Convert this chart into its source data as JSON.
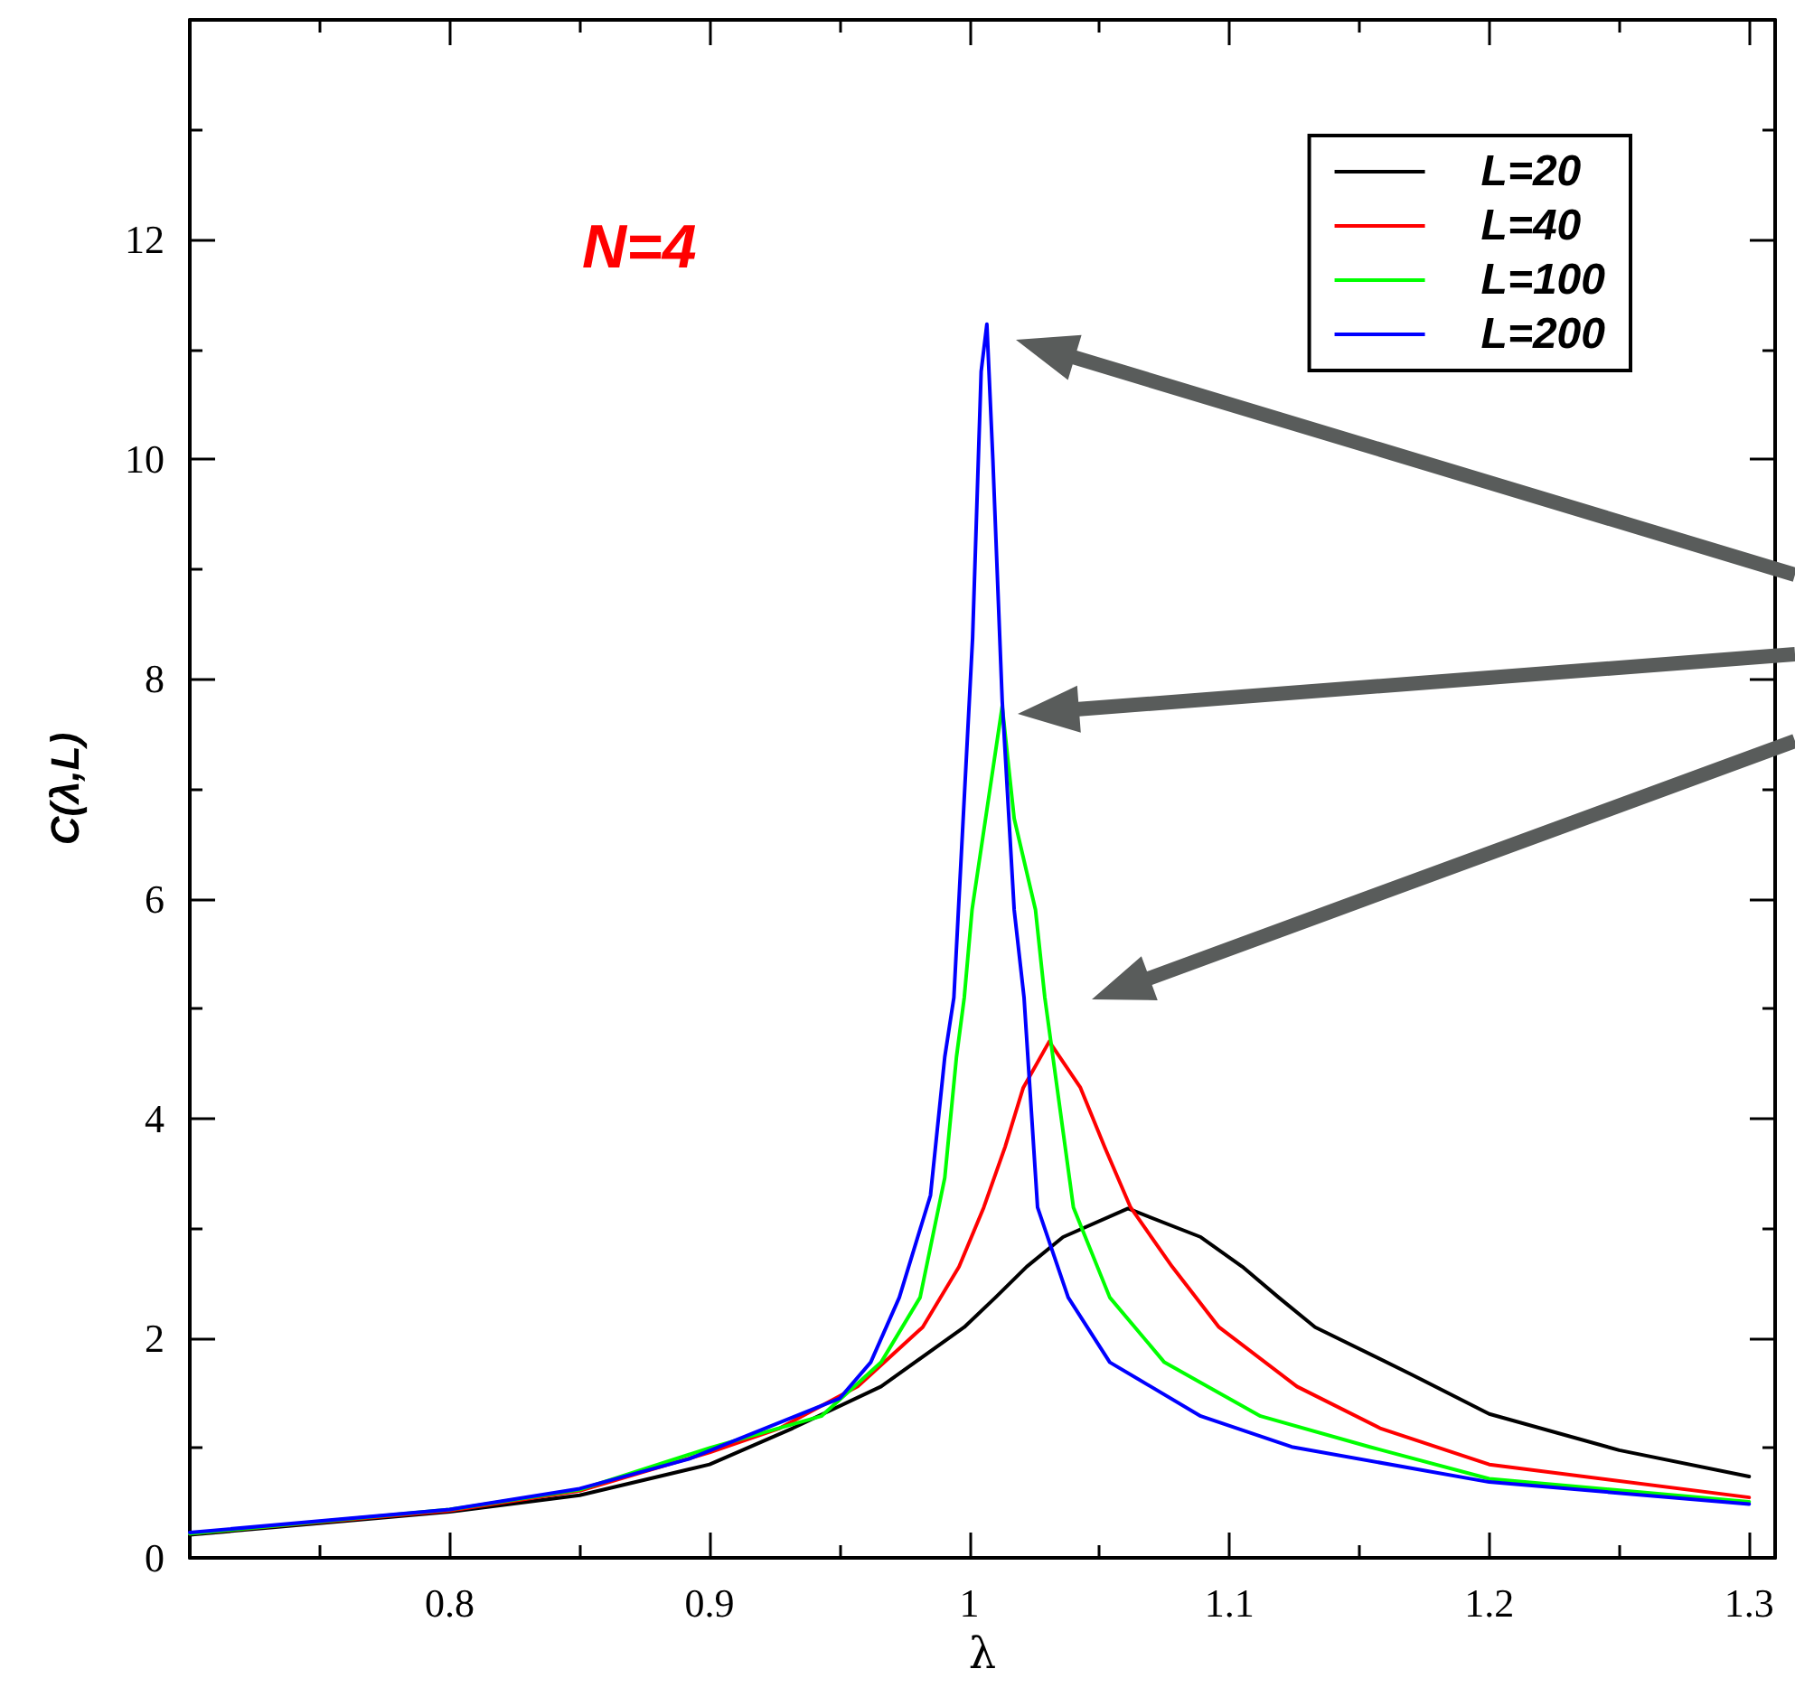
{
  "chart_data": {
    "type": "line",
    "xlabel": "λ",
    "ylabel": "C(λ,L)",
    "annotations": [
      "N=4"
    ],
    "xlim": [
      0.7,
      1.31
    ],
    "ylim": [
      0,
      14
    ],
    "xticks": [
      0.8,
      0.9,
      1,
      1.1,
      1.2,
      1.3
    ],
    "yticks": [
      0,
      2,
      4,
      6,
      8,
      10,
      12
    ],
    "grid": false,
    "legend": "top right",
    "marker": "none",
    "line_style": "solid",
    "series": [
      {
        "name": "L=20",
        "color": "#000000",
        "x": [
          0.7,
          0.8,
          0.85,
          0.9,
          0.932,
          0.966,
          0.998,
          1.01,
          1.022,
          1.036,
          1.061,
          1.089,
          1.105,
          1.119,
          1.133,
          1.17,
          1.2,
          1.25,
          1.3
        ],
        "values": [
          0.21,
          0.42,
          0.57,
          0.85,
          1.18,
          1.56,
          2.1,
          2.37,
          2.65,
          2.92,
          3.18,
          2.92,
          2.65,
          2.37,
          2.1,
          1.67,
          1.31,
          0.98,
          0.74
        ]
      },
      {
        "name": "L=40",
        "color": "#ff0000",
        "x": [
          0.7,
          0.8,
          0.85,
          0.9,
          0.927,
          0.957,
          0.982,
          0.996,
          1.0055,
          1.0137,
          1.0207,
          1.0307,
          1.0427,
          1.052,
          1.062,
          1.078,
          1.096,
          1.126,
          1.158,
          1.2,
          1.3
        ],
        "values": [
          0.22,
          0.43,
          0.61,
          0.96,
          1.18,
          1.56,
          2.1,
          2.65,
          3.19,
          3.74,
          4.28,
          4.7,
          4.28,
          3.74,
          3.19,
          2.65,
          2.1,
          1.56,
          1.18,
          0.85,
          0.55
        ]
      },
      {
        "name": "L=100",
        "color": "#00ff00",
        "x": [
          0.7,
          0.8,
          0.85,
          0.9,
          0.943,
          0.966,
          0.981,
          0.9905,
          0.995,
          0.998,
          1.001,
          1.0126,
          1.0172,
          1.0254,
          1.029,
          1.04,
          1.054,
          1.075,
          1.112,
          1.154,
          1.2,
          1.3
        ],
        "values": [
          0.22,
          0.44,
          0.62,
          1.0,
          1.29,
          1.78,
          2.37,
          3.46,
          4.56,
          5.1,
          5.9,
          7.75,
          6.73,
          5.9,
          5.1,
          3.19,
          2.37,
          1.78,
          1.29,
          1.01,
          0.72,
          0.51
        ]
      },
      {
        "name": "L=200",
        "color": "#0000ff",
        "x": [
          0.7,
          0.8,
          0.85,
          0.892,
          0.95,
          0.962,
          0.973,
          0.985,
          0.9905,
          0.994,
          1.0012,
          1.0045,
          1.0067,
          1.009,
          1.0126,
          1.0172,
          1.021,
          1.0262,
          1.038,
          1.054,
          1.089,
          1.124,
          1.2,
          1.3
        ],
        "values": [
          0.23,
          0.44,
          0.63,
          0.9,
          1.45,
          1.78,
          2.37,
          3.3,
          4.56,
          5.1,
          8.37,
          10.8,
          11.23,
          10.0,
          7.8,
          5.9,
          5.1,
          3.19,
          2.37,
          1.78,
          1.29,
          1.01,
          0.69,
          0.49
        ]
      }
    ]
  }
}
